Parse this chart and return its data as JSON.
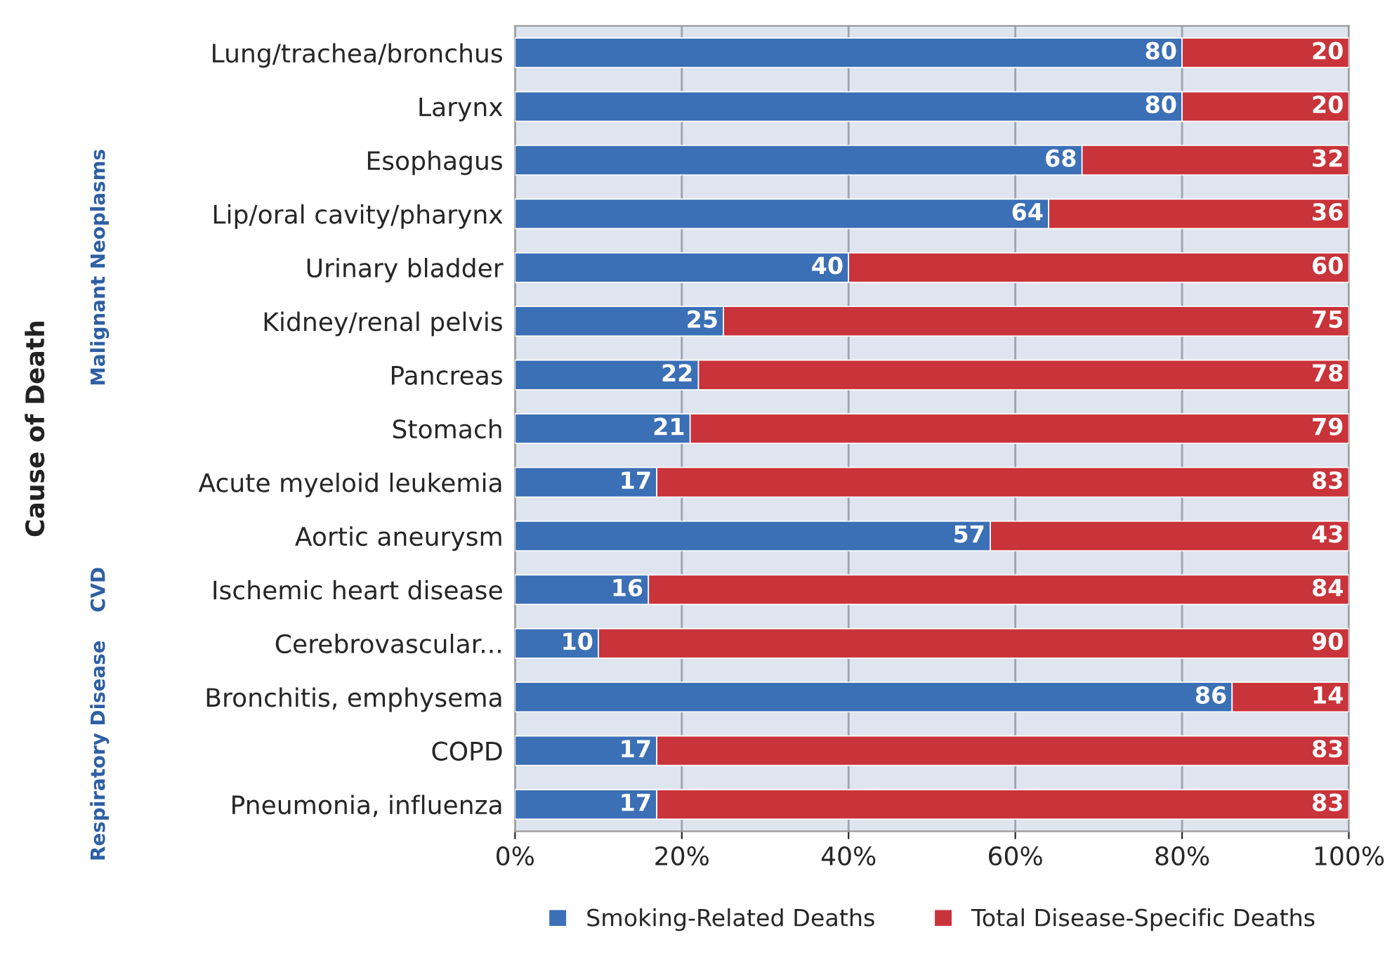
{
  "chart_data": {
    "type": "bar",
    "orientation": "horizontal",
    "stacked": true,
    "categories": [
      "Lung/trachea/bronchus",
      "Larynx",
      "Esophagus",
      "Lip/oral cavity/pharynx",
      "Urinary bladder",
      "Kidney/renal pelvis",
      "Pancreas",
      "Stomach",
      "Acute myeloid leukemia",
      "Aortic aneurysm",
      "Ischemic heart disease",
      "Cerebrovascular...",
      "Bronchitis, emphysema",
      "COPD",
      "Pneumonia, influenza"
    ],
    "series": [
      {
        "name": "Smoking-Related Deaths",
        "color": "#3b6fb6",
        "values": [
          80,
          80,
          68,
          64,
          40,
          25,
          22,
          21,
          17,
          57,
          16,
          10,
          86,
          17,
          17
        ]
      },
      {
        "name": "Total Disease-Specific Deaths",
        "color": "#c9333a",
        "values": [
          20,
          20,
          32,
          36,
          60,
          75,
          78,
          79,
          83,
          43,
          84,
          90,
          14,
          83,
          83
        ]
      }
    ],
    "xlim": [
      0,
      100
    ],
    "xticks": [
      {
        "value": 0,
        "label": "0%"
      },
      {
        "value": 20,
        "label": "20%"
      },
      {
        "value": 40,
        "label": "40%"
      },
      {
        "value": 60,
        "label": "60%"
      },
      {
        "value": 80,
        "label": "80%"
      },
      {
        "value": 100,
        "label": "100%"
      }
    ],
    "grid": "x",
    "legend": "bottom",
    "data_labels": true,
    "annotations": [
      "Malignant Neoplasms",
      "CVD",
      "Respiratory Disease",
      "Cause of Death"
    ]
  }
}
